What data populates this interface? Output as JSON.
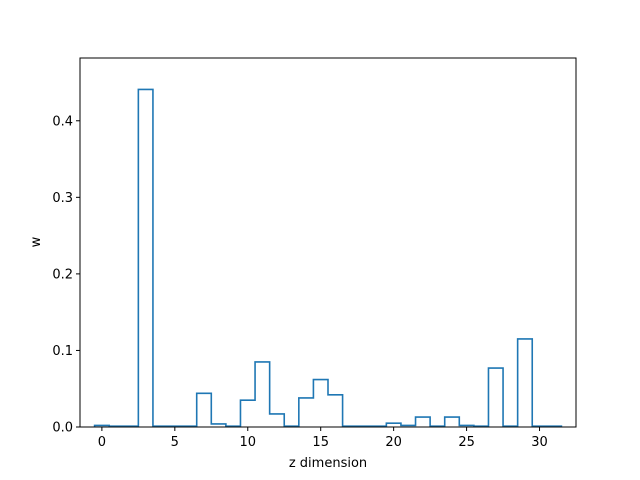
{
  "chart_data": {
    "type": "bar",
    "style": "step-outline",
    "title": "",
    "xlabel": "z dimension",
    "ylabel": "w",
    "xlim": [
      -1.5,
      32.5
    ],
    "ylim": [
      0,
      0.482
    ],
    "xticks": [
      0,
      5,
      10,
      15,
      20,
      25,
      30
    ],
    "yticks": [
      0.0,
      0.1,
      0.2,
      0.3,
      0.4
    ],
    "ytick_labels": [
      "0.0",
      "0.1",
      "0.2",
      "0.3",
      "0.4"
    ],
    "grid": false,
    "color": "#1f77b4",
    "x": [
      0,
      1,
      2,
      3,
      4,
      5,
      6,
      7,
      8,
      9,
      10,
      11,
      12,
      13,
      14,
      15,
      16,
      17,
      18,
      19,
      20,
      21,
      22,
      23,
      24,
      25,
      26,
      27,
      28,
      29,
      30,
      31
    ],
    "values": [
      0.002,
      0.001,
      0.001,
      0.441,
      0.001,
      0.001,
      0.001,
      0.044,
      0.004,
      0.001,
      0.035,
      0.085,
      0.017,
      0.001,
      0.038,
      0.062,
      0.042,
      0.001,
      0.001,
      0.001,
      0.005,
      0.002,
      0.013,
      0.001,
      0.013,
      0.002,
      0.001,
      0.077,
      0.001,
      0.115,
      0.001,
      0.001
    ]
  }
}
